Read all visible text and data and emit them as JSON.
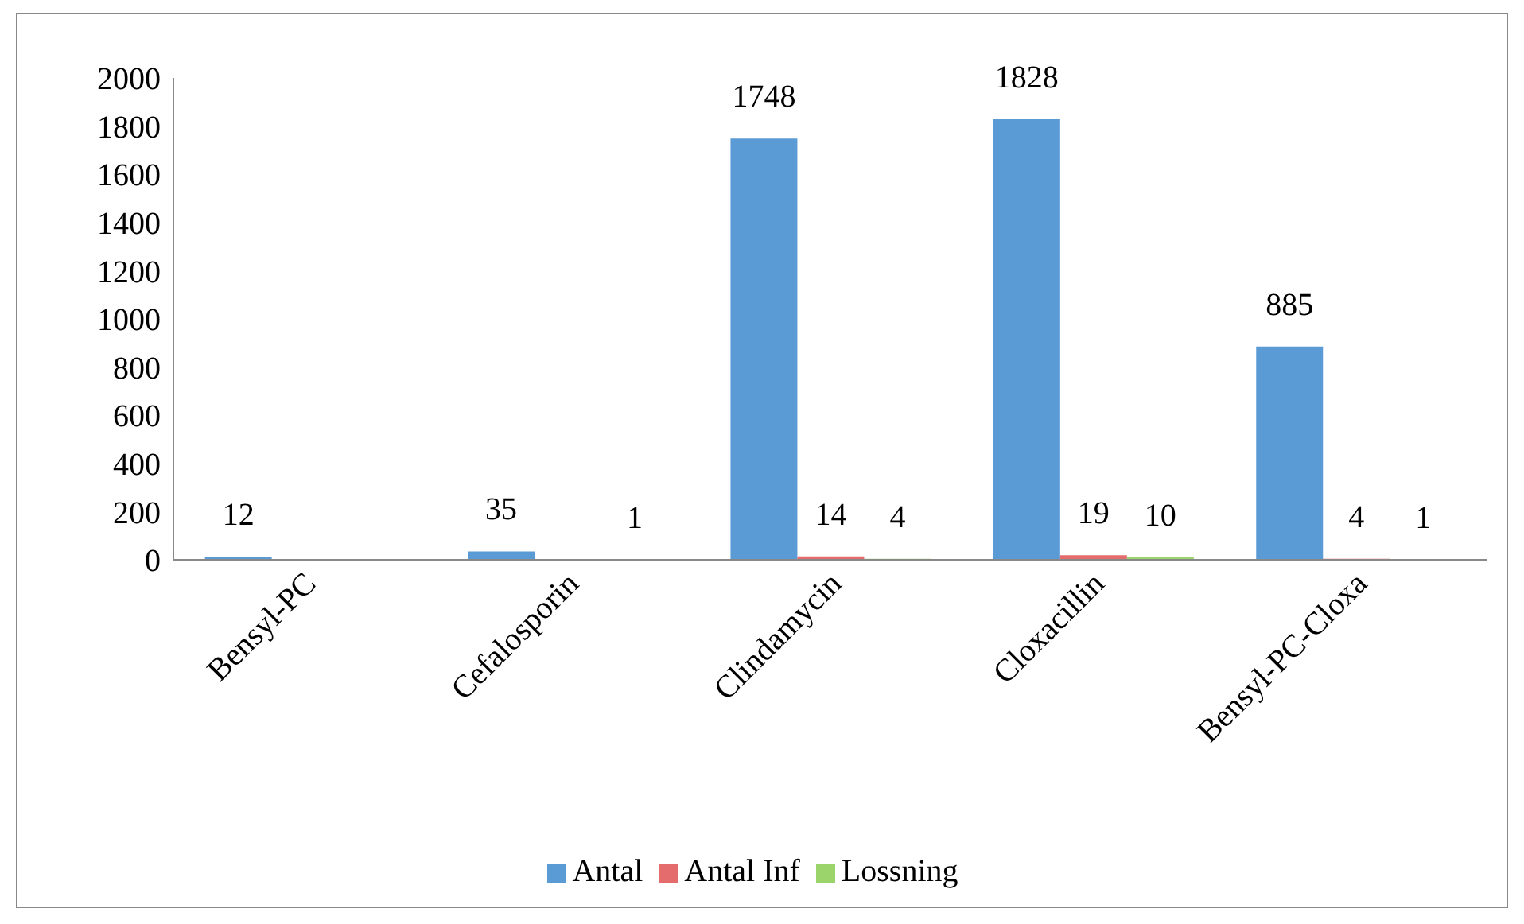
{
  "chart_data": {
    "type": "bar",
    "categories": [
      "Bensyl-PC",
      "Cefalosporin",
      "Clindamycin",
      "Cloxacillin",
      "Bensyl-PC-Cloxa"
    ],
    "series": [
      {
        "name": "Antal",
        "color": "#5b9bd5",
        "values": [
          12,
          35,
          1748,
          1828,
          885
        ],
        "value_labels": [
          "12",
          "35",
          "1748",
          "1828",
          "885"
        ]
      },
      {
        "name": "Antal Inf",
        "color": "#e46c6c",
        "values": [
          null,
          null,
          14,
          19,
          4
        ],
        "value_labels": [
          null,
          null,
          "14",
          "19",
          "4"
        ]
      },
      {
        "name": "Lossning",
        "color": "#9bd46a",
        "values": [
          null,
          1,
          4,
          10,
          1
        ],
        "value_labels": [
          null,
          "1",
          "4",
          "10",
          "1"
        ]
      }
    ],
    "ylim": [
      0,
      2000
    ],
    "yticks": [
      0,
      200,
      400,
      600,
      800,
      1000,
      1200,
      1400,
      1600,
      1800,
      2000
    ],
    "grid": false,
    "legend": "bottom"
  }
}
